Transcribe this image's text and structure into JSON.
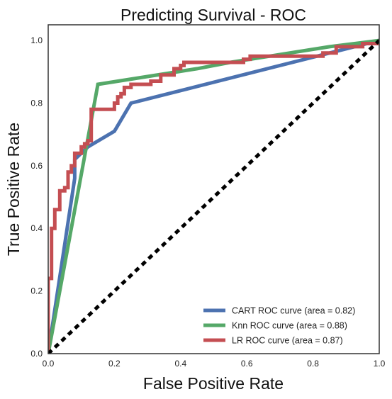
{
  "chart_data": {
    "type": "line",
    "title": "Predicting Survival - ROC",
    "xlabel": "False Positive Rate",
    "ylabel": "True Positive Rate",
    "xlim": [
      0.0,
      1.0
    ],
    "ylim": [
      0.0,
      1.05
    ],
    "xticks": [
      0.0,
      0.2,
      0.4,
      0.6,
      0.8,
      1.0
    ],
    "yticks": [
      0.0,
      0.2,
      0.4,
      0.6,
      0.8,
      1.0
    ],
    "xtick_labels": [
      "0.0",
      "0.2",
      "0.4",
      "0.6",
      "0.8",
      "1.0"
    ],
    "ytick_labels": [
      "0.0",
      "0.2",
      "0.4",
      "0.6",
      "0.8",
      "1.0"
    ],
    "grid": false,
    "legend_position": "lower-right",
    "series": [
      {
        "name": "CART ROC curve (area = 0.82)",
        "color": "#4c72b0",
        "x": [
          0.0,
          0.08,
          0.08,
          0.12,
          0.2,
          0.25,
          1.0
        ],
        "y": [
          0.0,
          0.56,
          0.62,
          0.66,
          0.71,
          0.8,
          1.0
        ]
      },
      {
        "name": "Knn ROC curve (area = 0.88)",
        "color": "#55a868",
        "x": [
          0.0,
          0.15,
          0.45,
          0.55,
          0.85,
          1.0
        ],
        "y": [
          0.0,
          0.86,
          0.91,
          0.93,
          0.98,
          1.0
        ]
      },
      {
        "name": "LR ROC curve (area = 0.87)",
        "color": "#c44e52",
        "x": [
          0.0,
          0.0,
          0.01,
          0.01,
          0.02,
          0.02,
          0.035,
          0.035,
          0.05,
          0.05,
          0.06,
          0.06,
          0.07,
          0.07,
          0.08,
          0.08,
          0.1,
          0.1,
          0.11,
          0.11,
          0.12,
          0.12,
          0.13,
          0.13,
          0.2,
          0.2,
          0.21,
          0.21,
          0.22,
          0.22,
          0.23,
          0.23,
          0.25,
          0.25,
          0.31,
          0.31,
          0.34,
          0.34,
          0.38,
          0.38,
          0.4,
          0.4,
          0.41,
          0.41,
          0.59,
          0.59,
          0.61,
          0.61,
          0.72,
          0.72,
          0.83,
          0.83,
          0.87,
          0.87,
          0.95,
          0.95,
          1.0
        ],
        "y": [
          0.0,
          0.24,
          0.24,
          0.4,
          0.4,
          0.46,
          0.46,
          0.52,
          0.52,
          0.53,
          0.53,
          0.58,
          0.58,
          0.6,
          0.6,
          0.64,
          0.64,
          0.66,
          0.66,
          0.67,
          0.67,
          0.68,
          0.68,
          0.78,
          0.78,
          0.8,
          0.8,
          0.82,
          0.82,
          0.83,
          0.83,
          0.85,
          0.85,
          0.86,
          0.86,
          0.87,
          0.87,
          0.89,
          0.89,
          0.91,
          0.91,
          0.92,
          0.92,
          0.93,
          0.93,
          0.94,
          0.94,
          0.95,
          0.95,
          0.95,
          0.95,
          0.96,
          0.96,
          0.98,
          0.98,
          0.99,
          0.99
        ]
      }
    ],
    "reference_line": {
      "color": "#000000",
      "x": [
        0.0,
        1.0
      ],
      "y": [
        0.0,
        1.0
      ]
    }
  }
}
